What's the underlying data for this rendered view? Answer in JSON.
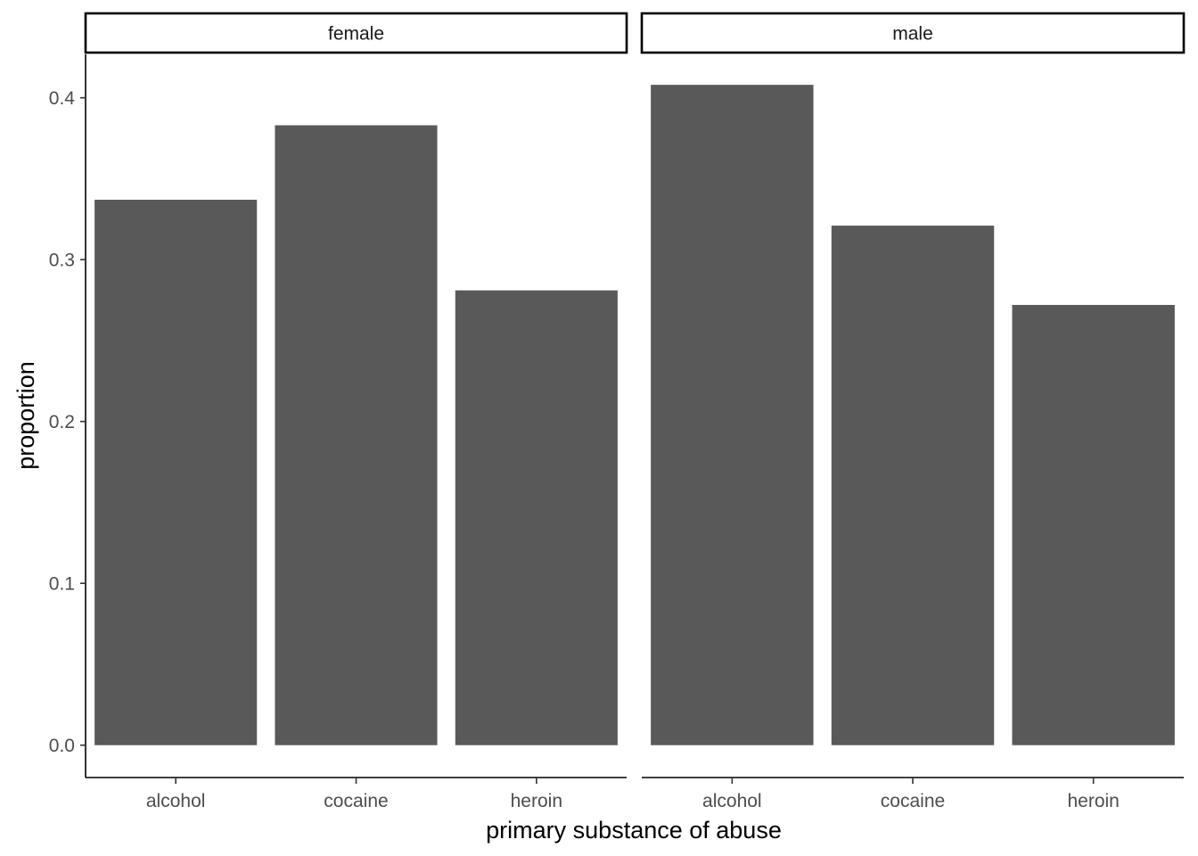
{
  "chart_data": {
    "type": "bar",
    "facet_variable": "sex",
    "facets": [
      {
        "label": "female",
        "categories": [
          "alcohol",
          "cocaine",
          "heroin"
        ],
        "values": [
          0.337,
          0.383,
          0.281
        ]
      },
      {
        "label": "male",
        "categories": [
          "alcohol",
          "cocaine",
          "heroin"
        ],
        "values": [
          0.408,
          0.321,
          0.272
        ]
      }
    ],
    "xlabel": "primary substance of abuse",
    "ylabel": "proportion",
    "ylim": [
      -0.02,
      0.4268
    ],
    "yticks": [
      "0.0",
      "0.1",
      "0.2",
      "0.3",
      "0.4"
    ],
    "bar_color": "#595959",
    "grid": false,
    "legend": "none"
  }
}
